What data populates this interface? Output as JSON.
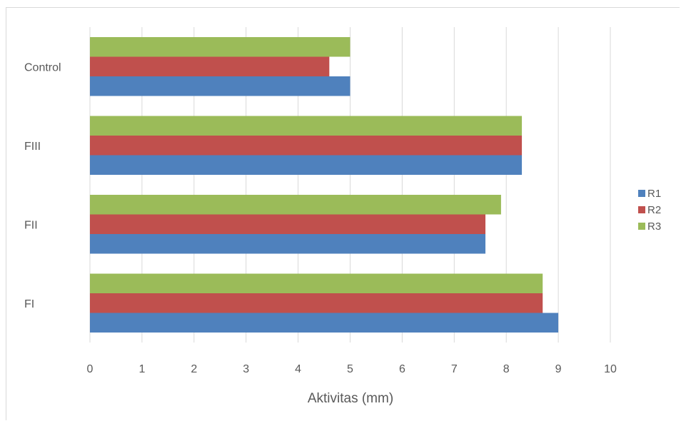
{
  "chart_data": {
    "type": "bar",
    "orientation": "horizontal",
    "categories": [
      "FI",
      "FII",
      "FIII",
      "Control"
    ],
    "series": [
      {
        "name": "R1",
        "color": "#4F81BD",
        "values": [
          9.0,
          7.6,
          8.3,
          5.0
        ]
      },
      {
        "name": "R2",
        "color": "#C0504D",
        "values": [
          8.7,
          7.6,
          8.3,
          4.6
        ]
      },
      {
        "name": "R3",
        "color": "#9BBB59",
        "values": [
          8.7,
          7.9,
          8.3,
          5.0
        ]
      }
    ],
    "xlabel": "Aktivitas (mm)",
    "ylabel": "",
    "xlim": [
      0,
      10
    ],
    "xticks": [
      "0",
      "1",
      "2",
      "3",
      "4",
      "5",
      "6",
      "7",
      "8",
      "9",
      "10"
    ],
    "grid": "vertical",
    "legend": "right"
  }
}
